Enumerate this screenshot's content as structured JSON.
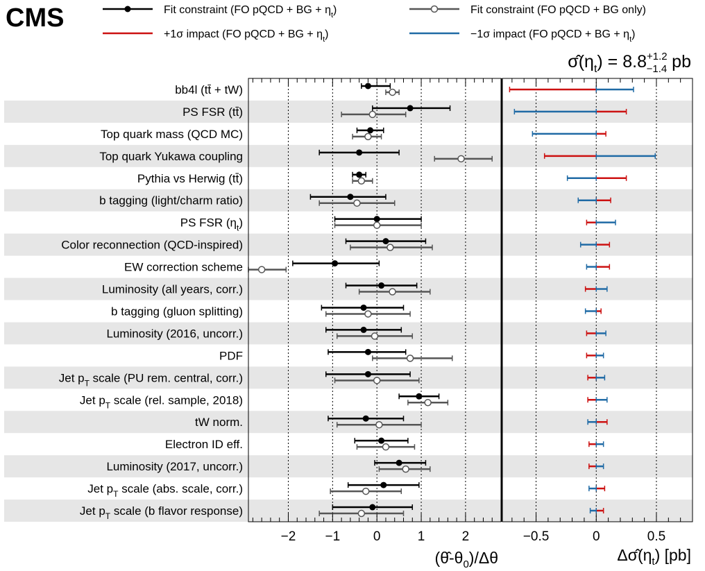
{
  "chart_data": {
    "type": "scatter",
    "experiment_label": "CMS",
    "result": {
      "prefix": "σ̂(η",
      "sub": "t",
      "mid": ") = 8.8",
      "sup_up": "+1.2",
      "sub_down": "−1.4",
      "unit": " pb"
    },
    "legend": [
      {
        "key": "fit_full",
        "name": "Fit constraint (FO pQCD + BG + η",
        "sub": "t",
        "tail": ")",
        "color": "#000000",
        "marker": "filled"
      },
      {
        "key": "fit_bg",
        "name": "Fit constraint (FO pQCD + BG only)",
        "sub": "",
        "tail": "",
        "color": "#555555",
        "marker": "open"
      },
      {
        "key": "plus_impact",
        "name": "+1σ impact (FO pQCD + BG + η",
        "sub": "t",
        "tail": ")",
        "color": "#cc1111",
        "marker": "line"
      },
      {
        "key": "minus_impact",
        "name": "−1σ impact (FO pQCD + BG + η",
        "sub": "t",
        "tail": ")",
        "color": "#1f6aa5",
        "marker": "line"
      }
    ],
    "left_panel": {
      "xlabel": "(θ̂-θ",
      "xlabel_sub": "0",
      "xlabel_tail": ")/Δθ",
      "xlim": [
        -2.9,
        2.8
      ],
      "ticks": [
        -2,
        -1,
        0,
        1,
        2
      ],
      "tick_labels": [
        "−2",
        "−1",
        "0",
        "1",
        "2"
      ],
      "grid_lines": [
        -2,
        -1,
        0,
        1,
        2
      ],
      "grid_style": "dotted"
    },
    "right_panel": {
      "xlabel": "Δσ̂(η",
      "xlabel_sub": "t",
      "xlabel_tail": ") [pb]",
      "xlim": [
        -0.78,
        0.8
      ],
      "ticks": [
        -0.5,
        0,
        0.5
      ],
      "tick_labels": [
        "−0.5",
        "0",
        "0.5"
      ],
      "grid_lines": [
        -0.5,
        0,
        0.5
      ],
      "grid_style": "dotted"
    },
    "nuisances": [
      {
        "label": "bb4l (tt̄ + tW)",
        "lp": "bb4l (tt̄ + tW)",
        "sub": "",
        "ls": "",
        "fit_full": {
          "value": -0.2,
          "lo": -0.35,
          "hi": 0.3
        },
        "fit_bg": {
          "value": 0.35,
          "lo": 0.2,
          "hi": 0.5
        },
        "impact_plus": -0.72,
        "impact_minus": 0.31
      },
      {
        "label": "PS FSR (tt̄)",
        "lp": "PS FSR (tt̄)",
        "sub": "",
        "ls": "",
        "fit_full": {
          "value": 0.75,
          "lo": -0.1,
          "hi": 1.65
        },
        "fit_bg": {
          "value": -0.1,
          "lo": -0.8,
          "hi": 0.65
        },
        "impact_plus": 0.25,
        "impact_minus": -0.68
      },
      {
        "label": "Top quark mass (QCD MC)",
        "lp": "Top quark mass (QCD MC)",
        "sub": "",
        "ls": "",
        "fit_full": {
          "value": -0.15,
          "lo": -0.45,
          "hi": 0.15
        },
        "fit_bg": {
          "value": -0.2,
          "lo": -0.55,
          "hi": 0.1
        },
        "impact_plus": 0.08,
        "impact_minus": -0.53
      },
      {
        "label": "Top quark Yukawa coupling",
        "lp": "Top quark Yukawa coupling",
        "sub": "",
        "ls": "",
        "fit_full": {
          "value": -0.4,
          "lo": -1.3,
          "hi": 0.5
        },
        "fit_bg": {
          "value": 1.9,
          "lo": 1.3,
          "hi": 2.6
        },
        "impact_plus": -0.43,
        "impact_minus": 0.49
      },
      {
        "label": "Pythia vs Herwig (tt̄)",
        "lp": "Pythia vs Herwig (tt̄)",
        "sub": "",
        "ls": "",
        "fit_full": {
          "value": -0.4,
          "lo": -0.55,
          "hi": -0.25
        },
        "fit_bg": {
          "value": -0.35,
          "lo": -0.55,
          "hi": -0.1
        },
        "impact_plus": 0.25,
        "impact_minus": -0.24
      },
      {
        "label": "b tagging (light/charm ratio)",
        "lp": "b tagging (light/charm ratio)",
        "sub": "",
        "ls": "",
        "fit_full": {
          "value": -0.6,
          "lo": -1.5,
          "hi": 0.2
        },
        "fit_bg": {
          "value": -0.45,
          "lo": -1.3,
          "hi": 0.4
        },
        "impact_plus": 0.12,
        "impact_minus": -0.15
      },
      {
        "label": "PS FSR (ηt)",
        "lp": "PS FSR (η",
        "sub": "t",
        "ls": ")",
        "fit_full": {
          "value": 0.0,
          "lo": -0.95,
          "hi": 1.0
        },
        "fit_bg": {
          "value": 0.0,
          "lo": -0.95,
          "hi": 1.0
        },
        "impact_plus": -0.08,
        "impact_minus": 0.16
      },
      {
        "label": "Color reconnection (QCD-inspired)",
        "lp": "Color reconnection (QCD-inspired)",
        "sub": "",
        "ls": "",
        "fit_full": {
          "value": 0.2,
          "lo": -0.7,
          "hi": 1.1
        },
        "fit_bg": {
          "value": 0.3,
          "lo": -0.6,
          "hi": 1.25
        },
        "impact_plus": 0.11,
        "impact_minus": -0.13
      },
      {
        "label": "EW correction scheme",
        "lp": "EW correction scheme",
        "sub": "",
        "ls": "",
        "fit_full": {
          "value": -0.95,
          "lo": -1.9,
          "hi": 0.05
        },
        "fit_bg": {
          "value": -2.6,
          "lo": -2.9,
          "hi": -2.05
        },
        "impact_plus": 0.11,
        "impact_minus": -0.08
      },
      {
        "label": "Luminosity (all years, corr.)",
        "lp": "Luminosity (all years, corr.)",
        "sub": "",
        "ls": "",
        "fit_full": {
          "value": 0.1,
          "lo": -0.7,
          "hi": 0.9
        },
        "fit_bg": {
          "value": 0.35,
          "lo": -0.4,
          "hi": 1.2
        },
        "impact_plus": -0.09,
        "impact_minus": 0.09
      },
      {
        "label": "b tagging (gluon splitting)",
        "lp": "b tagging (gluon splitting)",
        "sub": "",
        "ls": "",
        "fit_full": {
          "value": -0.3,
          "lo": -1.25,
          "hi": 0.6
        },
        "fit_bg": {
          "value": -0.2,
          "lo": -1.15,
          "hi": 0.75
        },
        "impact_plus": 0.04,
        "impact_minus": -0.09
      },
      {
        "label": "Luminosity (2016, uncorr.)",
        "lp": "Luminosity (2016, uncorr.)",
        "sub": "",
        "ls": "",
        "fit_full": {
          "value": -0.3,
          "lo": -1.15,
          "hi": 0.55
        },
        "fit_bg": {
          "value": -0.05,
          "lo": -0.9,
          "hi": 0.8
        },
        "impact_plus": -0.08,
        "impact_minus": 0.08
      },
      {
        "label": "PDF",
        "lp": "PDF",
        "sub": "",
        "ls": "",
        "fit_full": {
          "value": -0.2,
          "lo": -1.1,
          "hi": 0.65
        },
        "fit_bg": {
          "value": 0.75,
          "lo": -0.1,
          "hi": 1.7
        },
        "impact_plus": -0.08,
        "impact_minus": 0.06
      },
      {
        "label": "Jet pT scale (PU rem. central, corr.)",
        "lp": "Jet p",
        "sub": "T",
        "ls": " scale (PU rem. central, corr.)",
        "fit_full": {
          "value": -0.2,
          "lo": -1.15,
          "hi": 0.75
        },
        "fit_bg": {
          "value": 0.0,
          "lo": -0.95,
          "hi": 0.95
        },
        "impact_plus": -0.07,
        "impact_minus": 0.07
      },
      {
        "label": "Jet pT scale (rel. sample, 2018)",
        "lp": "Jet p",
        "sub": "T",
        "ls": " scale (rel. sample, 2018)",
        "fit_full": {
          "value": 0.95,
          "lo": 0.5,
          "hi": 1.4
        },
        "fit_bg": {
          "value": 1.15,
          "lo": 0.7,
          "hi": 1.6
        },
        "impact_plus": -0.07,
        "impact_minus": 0.09
      },
      {
        "label": "tW norm.",
        "lp": "tW norm.",
        "sub": "",
        "ls": "",
        "fit_full": {
          "value": -0.25,
          "lo": -1.1,
          "hi": 0.6
        },
        "fit_bg": {
          "value": 0.05,
          "lo": -0.9,
          "hi": 1.0
        },
        "impact_plus": 0.09,
        "impact_minus": -0.07
      },
      {
        "label": "Electron ID eff.",
        "lp": "Electron ID eff.",
        "sub": "",
        "ls": "",
        "fit_full": {
          "value": 0.1,
          "lo": -0.5,
          "hi": 0.7
        },
        "fit_bg": {
          "value": 0.2,
          "lo": -0.45,
          "hi": 0.85
        },
        "impact_plus": -0.06,
        "impact_minus": 0.06
      },
      {
        "label": "Luminosity (2017, uncorr.)",
        "lp": "Luminosity (2017, uncorr.)",
        "sub": "",
        "ls": "",
        "fit_full": {
          "value": 0.5,
          "lo": -0.05,
          "hi": 1.1
        },
        "fit_bg": {
          "value": 0.65,
          "lo": 0.05,
          "hi": 1.2
        },
        "impact_plus": -0.06,
        "impact_minus": 0.06
      },
      {
        "label": "Jet pT scale (abs. scale, corr.)",
        "lp": "Jet p",
        "sub": "T",
        "ls": "  scale (abs. scale, corr.)",
        "fit_full": {
          "value": 0.15,
          "lo": -0.65,
          "hi": 0.95
        },
        "fit_bg": {
          "value": -0.25,
          "lo": -1.05,
          "hi": 0.55
        },
        "impact_plus": 0.07,
        "impact_minus": -0.06
      },
      {
        "label": "Jet pT scale (b flavor response)",
        "lp": "Jet p",
        "sub": "T",
        "ls": " scale (b flavor response)",
        "fit_full": {
          "value": -0.1,
          "lo": -1.0,
          "hi": 0.8
        },
        "fit_bg": {
          "value": -0.35,
          "lo": -1.3,
          "hi": 0.6
        },
        "impact_plus": 0.06,
        "impact_minus": -0.05
      }
    ]
  }
}
